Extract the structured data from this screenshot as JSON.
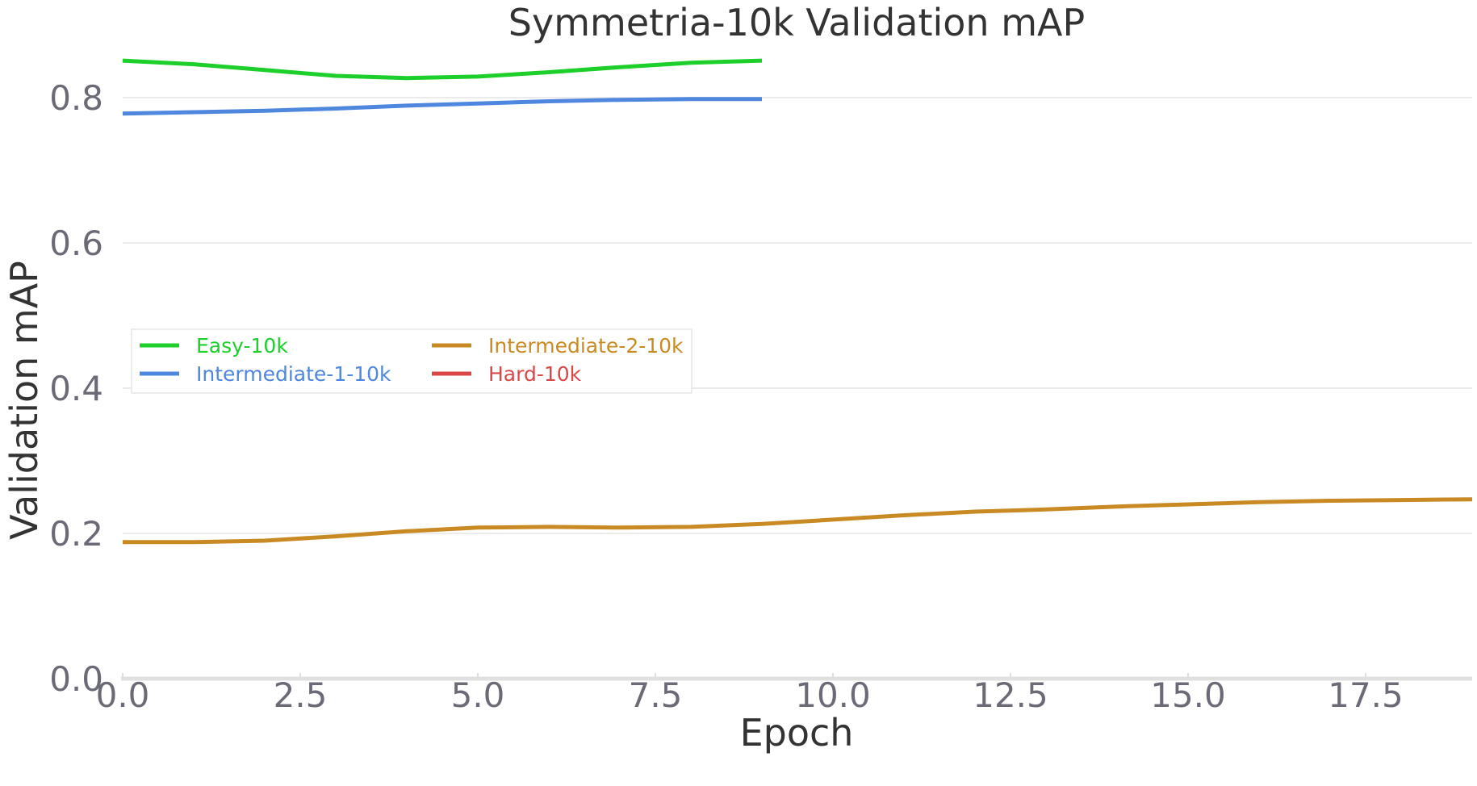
{
  "chart_data": {
    "type": "line",
    "title": "Symmetria-10k Validation mAP",
    "xlabel": "Epoch",
    "ylabel": "Validation mAP",
    "xlim": [
      0,
      19
    ],
    "ylim": [
      0,
      0.8
    ],
    "xticks": [
      "0.0",
      "2.5",
      "5.0",
      "7.5",
      "10.0",
      "12.5",
      "15.0",
      "17.5"
    ],
    "yticks": [
      "0.0",
      "0.2",
      "0.4",
      "0.6",
      "0.8"
    ],
    "grid": "horizontal",
    "legend_placement": "center-left",
    "series": [
      {
        "name": "Easy-10k",
        "color": "#1ccf2a",
        "x": [
          0,
          1,
          2,
          3,
          4,
          5,
          6,
          7,
          8,
          9
        ],
        "y": [
          0.851,
          0.846,
          0.838,
          0.83,
          0.827,
          0.829,
          0.835,
          0.842,
          0.848,
          0.851
        ]
      },
      {
        "name": "Intermediate-1-10k",
        "color": "#4f86de",
        "x": [
          0,
          1,
          2,
          3,
          4,
          5,
          6,
          7,
          8,
          9
        ],
        "y": [
          0.778,
          0.78,
          0.782,
          0.785,
          0.789,
          0.792,
          0.795,
          0.797,
          0.798,
          0.798
        ]
      },
      {
        "name": "Intermediate-2-10k",
        "color": "#c98a24",
        "x": [
          0,
          1,
          2,
          3,
          4,
          5,
          6,
          7,
          8,
          9,
          10,
          11,
          12,
          13,
          14,
          15,
          16,
          17,
          18,
          19
        ],
        "y": [
          0.188,
          0.188,
          0.19,
          0.196,
          0.203,
          0.208,
          0.209,
          0.208,
          0.209,
          0.213,
          0.219,
          0.225,
          0.23,
          0.233,
          0.237,
          0.24,
          0.243,
          0.245,
          0.246,
          0.247
        ]
      },
      {
        "name": "Hard-10k",
        "color": "#db4747",
        "x": [],
        "y": []
      }
    ]
  }
}
